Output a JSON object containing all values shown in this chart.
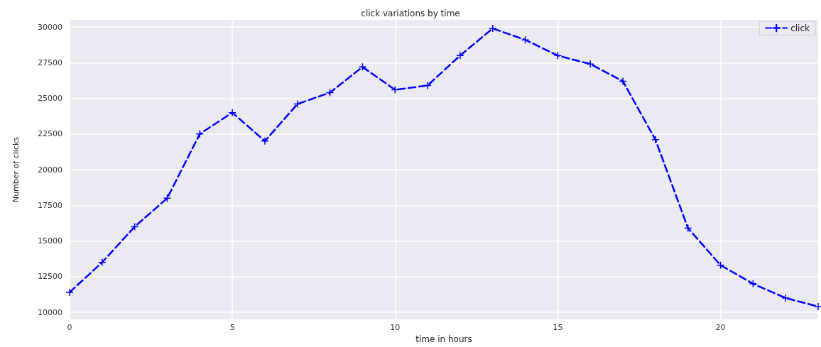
{
  "chart_data": {
    "type": "line",
    "title": "click variations by time",
    "xlabel": "time in hours",
    "ylabel": "Number of clicks",
    "x": [
      0,
      1,
      2,
      3,
      4,
      5,
      6,
      7,
      8,
      9,
      10,
      11,
      12,
      13,
      14,
      15,
      16,
      17,
      18,
      19,
      20,
      21,
      22,
      23
    ],
    "series": [
      {
        "name": "click",
        "color": "#0000ff",
        "values": [
          11400,
          13500,
          16000,
          18000,
          22500,
          24000,
          22000,
          24600,
          25400,
          27200,
          25600,
          25900,
          28000,
          29900,
          29100,
          28000,
          27400,
          26200,
          22100,
          15900,
          13300,
          12000,
          11000,
          10400
        ]
      }
    ],
    "xlim": [
      0,
      23
    ],
    "xticks": [
      0,
      5,
      10,
      15,
      20
    ],
    "ylim": [
      9500,
      30500
    ],
    "yticks": [
      10000,
      12500,
      15000,
      17500,
      20000,
      22500,
      25000,
      27500,
      30000
    ],
    "grid": true,
    "legend": "top right",
    "marker": "cross",
    "line_style": "dashed"
  }
}
